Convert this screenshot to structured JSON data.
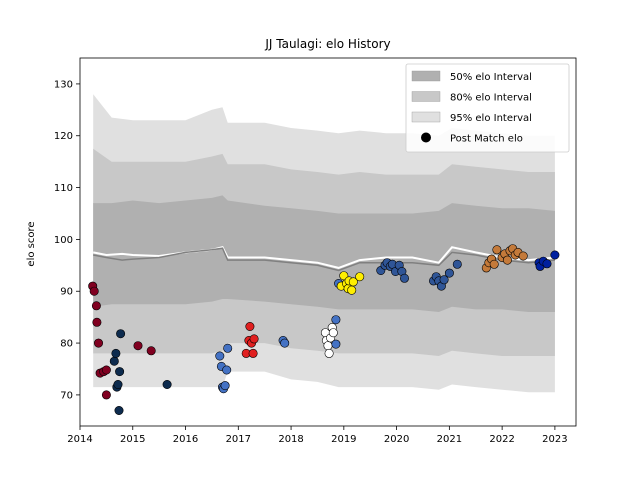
{
  "chart_data": {
    "type": "scatter",
    "title": "JJ Taulagi: elo History",
    "xlabel": "",
    "ylabel": "elo score",
    "xlim": [
      2014.0,
      2023.4
    ],
    "ylim": [
      64,
      135
    ],
    "x_ticks": [
      2014,
      2015,
      2016,
      2017,
      2018,
      2019,
      2020,
      2021,
      2022,
      2023
    ],
    "y_ticks": [
      70,
      80,
      90,
      100,
      110,
      120,
      130
    ],
    "grid": false,
    "legend_position": "top-right",
    "legend": [
      {
        "label": "50% elo Interval",
        "color": "#b0b0b0",
        "kind": "band"
      },
      {
        "label": "80% elo Interval",
        "color": "#c8c8c8",
        "kind": "band"
      },
      {
        "label": "95% elo Interval",
        "color": "#e0e0e0",
        "kind": "band"
      },
      {
        "label": "Post Match elo",
        "color": "#000000",
        "kind": "marker"
      }
    ],
    "intervals": {
      "x": [
        2014.25,
        2014.6,
        2015.0,
        2015.5,
        2016.0,
        2016.5,
        2016.7,
        2016.8,
        2017.5,
        2018.0,
        2018.5,
        2018.9,
        2019.3,
        2019.8,
        2020.3,
        2020.8,
        2021.05,
        2021.5,
        2022.0,
        2022.5,
        2023.0
      ],
      "p95": [
        {
          "lo": 71.5,
          "hi": 128.0
        },
        {
          "lo": 71.5,
          "hi": 123.5
        },
        {
          "lo": 71.5,
          "hi": 123.0
        },
        {
          "lo": 71.5,
          "hi": 123.0
        },
        {
          "lo": 71.5,
          "hi": 123.0
        },
        {
          "lo": 71.5,
          "hi": 125.0
        },
        {
          "lo": 71.5,
          "hi": 125.5
        },
        {
          "lo": 74.5,
          "hi": 122.5
        },
        {
          "lo": 74.5,
          "hi": 122.5
        },
        {
          "lo": 73.0,
          "hi": 121.5
        },
        {
          "lo": 72.5,
          "hi": 121.0
        },
        {
          "lo": 71.5,
          "hi": 120.5
        },
        {
          "lo": 71.5,
          "hi": 121.0
        },
        {
          "lo": 71.5,
          "hi": 120.5
        },
        {
          "lo": 71.5,
          "hi": 120.5
        },
        {
          "lo": 71.0,
          "hi": 120.0
        },
        {
          "lo": 72.0,
          "hi": 121.5
        },
        {
          "lo": 71.5,
          "hi": 121.0
        },
        {
          "lo": 71.0,
          "hi": 120.5
        },
        {
          "lo": 70.5,
          "hi": 120.0
        },
        {
          "lo": 70.5,
          "hi": 120.0
        }
      ],
      "p80": [
        {
          "lo": 78.0,
          "hi": 117.5
        },
        {
          "lo": 78.0,
          "hi": 115.0
        },
        {
          "lo": 78.0,
          "hi": 115.0
        },
        {
          "lo": 78.0,
          "hi": 115.0
        },
        {
          "lo": 78.0,
          "hi": 115.0
        },
        {
          "lo": 78.0,
          "hi": 116.0
        },
        {
          "lo": 78.5,
          "hi": 116.5
        },
        {
          "lo": 80.0,
          "hi": 114.5
        },
        {
          "lo": 80.0,
          "hi": 114.5
        },
        {
          "lo": 79.0,
          "hi": 113.5
        },
        {
          "lo": 78.5,
          "hi": 113.0
        },
        {
          "lo": 78.0,
          "hi": 112.5
        },
        {
          "lo": 78.0,
          "hi": 113.0
        },
        {
          "lo": 78.0,
          "hi": 112.5
        },
        {
          "lo": 78.0,
          "hi": 112.5
        },
        {
          "lo": 77.5,
          "hi": 112.5
        },
        {
          "lo": 78.5,
          "hi": 114.5
        },
        {
          "lo": 78.0,
          "hi": 114.0
        },
        {
          "lo": 77.5,
          "hi": 113.5
        },
        {
          "lo": 77.5,
          "hi": 113.0
        },
        {
          "lo": 77.5,
          "hi": 113.0
        }
      ],
      "p50": [
        {
          "lo": 87.0,
          "hi": 107.0
        },
        {
          "lo": 87.5,
          "hi": 107.0
        },
        {
          "lo": 87.5,
          "hi": 107.5
        },
        {
          "lo": 87.5,
          "hi": 107.0
        },
        {
          "lo": 87.5,
          "hi": 107.5
        },
        {
          "lo": 88.0,
          "hi": 108.0
        },
        {
          "lo": 88.5,
          "hi": 108.5
        },
        {
          "lo": 88.5,
          "hi": 107.5
        },
        {
          "lo": 88.0,
          "hi": 106.5
        },
        {
          "lo": 87.5,
          "hi": 106.0
        },
        {
          "lo": 87.0,
          "hi": 105.5
        },
        {
          "lo": 86.5,
          "hi": 105.0
        },
        {
          "lo": 86.5,
          "hi": 105.0
        },
        {
          "lo": 86.5,
          "hi": 105.0
        },
        {
          "lo": 86.5,
          "hi": 105.0
        },
        {
          "lo": 86.0,
          "hi": 105.5
        },
        {
          "lo": 87.0,
          "hi": 107.0
        },
        {
          "lo": 86.5,
          "hi": 106.5
        },
        {
          "lo": 86.5,
          "hi": 106.0
        },
        {
          "lo": 86.0,
          "hi": 106.0
        },
        {
          "lo": 86.0,
          "hi": 105.5
        }
      ]
    },
    "series": [
      {
        "x": [
          2014.25,
          2014.5,
          2014.8,
          2015.0,
          2015.5,
          2016.0,
          2016.5,
          2016.7,
          2016.8,
          2017.5,
          2018.0,
          2018.5,
          2018.9,
          2019.3,
          2019.8,
          2020.3,
          2020.8,
          2021.05,
          2021.5,
          2022.0,
          2022.5,
          2023.0
        ],
        "values": [
          97.5,
          97.0,
          97.2,
          97.0,
          96.8,
          97.5,
          98.0,
          98.5,
          96.5,
          96.5,
          96.0,
          95.5,
          94.5,
          96.0,
          96.5,
          96.5,
          95.5,
          98.5,
          97.5,
          96.5,
          96.0,
          96.5
        ],
        "color": "#ffffff",
        "style": "line"
      },
      {
        "x": [
          2014.25,
          2014.5,
          2014.8,
          2015.0,
          2015.5,
          2016.0,
          2016.5,
          2016.7,
          2016.8,
          2017.5,
          2018.0,
          2018.5,
          2018.9,
          2019.3,
          2019.8,
          2020.3,
          2020.8,
          2021.05,
          2021.5,
          2022.0,
          2022.5,
          2023.0
        ],
        "values": [
          97.0,
          96.5,
          96.0,
          96.2,
          96.5,
          97.5,
          98.0,
          98.3,
          96.0,
          96.0,
          95.5,
          95.0,
          94.0,
          95.5,
          95.5,
          95.5,
          95.0,
          97.5,
          97.0,
          96.0,
          95.5,
          96.0
        ],
        "color": "#808080",
        "style": "line"
      }
    ],
    "points": [
      {
        "x": 2014.24,
        "y": 91.0,
        "color": "#800020"
      },
      {
        "x": 2014.27,
        "y": 90.0,
        "color": "#800020"
      },
      {
        "x": 2014.31,
        "y": 87.2,
        "color": "#800020"
      },
      {
        "x": 2014.32,
        "y": 84.0,
        "color": "#800020"
      },
      {
        "x": 2014.35,
        "y": 80.0,
        "color": "#800020"
      },
      {
        "x": 2014.38,
        "y": 74.2,
        "color": "#800020"
      },
      {
        "x": 2014.45,
        "y": 74.5,
        "color": "#800020"
      },
      {
        "x": 2014.5,
        "y": 74.8,
        "color": "#800020"
      },
      {
        "x": 2014.5,
        "y": 70.0,
        "color": "#800020"
      },
      {
        "x": 2014.65,
        "y": 76.5,
        "color": "#0d2b4e"
      },
      {
        "x": 2014.68,
        "y": 78.0,
        "color": "#0d2b4e"
      },
      {
        "x": 2014.7,
        "y": 71.5,
        "color": "#0d2b4e"
      },
      {
        "x": 2014.72,
        "y": 72.0,
        "color": "#0d2b4e"
      },
      {
        "x": 2014.75,
        "y": 74.5,
        "color": "#0d2b4e"
      },
      {
        "x": 2014.77,
        "y": 81.8,
        "color": "#0d2b4e"
      },
      {
        "x": 2014.74,
        "y": 67.0,
        "color": "#0d2b4e"
      },
      {
        "x": 2015.1,
        "y": 79.5,
        "color": "#800020"
      },
      {
        "x": 2015.35,
        "y": 78.5,
        "color": "#800020"
      },
      {
        "x": 2015.65,
        "y": 72.0,
        "color": "#0d2b4e"
      },
      {
        "x": 2016.65,
        "y": 77.5,
        "color": "#4472c4"
      },
      {
        "x": 2016.68,
        "y": 75.5,
        "color": "#4472c4"
      },
      {
        "x": 2016.7,
        "y": 71.5,
        "color": "#4472c4"
      },
      {
        "x": 2016.72,
        "y": 71.2,
        "color": "#4472c4"
      },
      {
        "x": 2016.75,
        "y": 71.8,
        "color": "#4472c4"
      },
      {
        "x": 2016.78,
        "y": 74.8,
        "color": "#4472c4"
      },
      {
        "x": 2016.8,
        "y": 79.0,
        "color": "#4472c4"
      },
      {
        "x": 2017.15,
        "y": 78.0,
        "color": "#e02020"
      },
      {
        "x": 2017.2,
        "y": 80.5,
        "color": "#e02020"
      },
      {
        "x": 2017.22,
        "y": 83.2,
        "color": "#e02020"
      },
      {
        "x": 2017.25,
        "y": 80.0,
        "color": "#e02020"
      },
      {
        "x": 2017.28,
        "y": 78.0,
        "color": "#e02020"
      },
      {
        "x": 2017.3,
        "y": 80.8,
        "color": "#e02020"
      },
      {
        "x": 2017.85,
        "y": 80.5,
        "color": "#4472c4"
      },
      {
        "x": 2017.88,
        "y": 80.0,
        "color": "#4472c4"
      },
      {
        "x": 2018.65,
        "y": 82.0,
        "color": "#ffffff"
      },
      {
        "x": 2018.67,
        "y": 80.5,
        "color": "#ffffff"
      },
      {
        "x": 2018.7,
        "y": 79.5,
        "color": "#ffffff"
      },
      {
        "x": 2018.72,
        "y": 78.0,
        "color": "#ffffff"
      },
      {
        "x": 2018.75,
        "y": 81.0,
        "color": "#ffffff"
      },
      {
        "x": 2018.78,
        "y": 83.0,
        "color": "#ffffff"
      },
      {
        "x": 2018.8,
        "y": 82.0,
        "color": "#ffffff"
      },
      {
        "x": 2018.85,
        "y": 79.8,
        "color": "#4472c4"
      },
      {
        "x": 2018.85,
        "y": 84.5,
        "color": "#4472c4"
      },
      {
        "x": 2018.9,
        "y": 91.5,
        "color": "#4472c4"
      },
      {
        "x": 2018.95,
        "y": 91.0,
        "color": "#ffee00"
      },
      {
        "x": 2019.0,
        "y": 93.0,
        "color": "#ffee00"
      },
      {
        "x": 2019.05,
        "y": 91.5,
        "color": "#ffee00"
      },
      {
        "x": 2019.08,
        "y": 90.5,
        "color": "#ffee00"
      },
      {
        "x": 2019.1,
        "y": 92.0,
        "color": "#ffee00"
      },
      {
        "x": 2019.15,
        "y": 90.2,
        "color": "#ffee00"
      },
      {
        "x": 2019.18,
        "y": 91.8,
        "color": "#ffee00"
      },
      {
        "x": 2019.3,
        "y": 92.8,
        "color": "#ffee00"
      },
      {
        "x": 2019.7,
        "y": 94.0,
        "color": "#2f5597"
      },
      {
        "x": 2019.78,
        "y": 95.0,
        "color": "#2f5597"
      },
      {
        "x": 2019.82,
        "y": 95.5,
        "color": "#2f5597"
      },
      {
        "x": 2019.88,
        "y": 94.8,
        "color": "#2f5597"
      },
      {
        "x": 2019.92,
        "y": 95.2,
        "color": "#2f5597"
      },
      {
        "x": 2019.98,
        "y": 93.8,
        "color": "#2f5597"
      },
      {
        "x": 2020.05,
        "y": 95.0,
        "color": "#2f5597"
      },
      {
        "x": 2020.1,
        "y": 93.8,
        "color": "#2f5597"
      },
      {
        "x": 2020.15,
        "y": 92.5,
        "color": "#2f5597"
      },
      {
        "x": 2020.7,
        "y": 92.0,
        "color": "#2f5597"
      },
      {
        "x": 2020.75,
        "y": 92.8,
        "color": "#2f5597"
      },
      {
        "x": 2020.8,
        "y": 92.0,
        "color": "#2f5597"
      },
      {
        "x": 2020.85,
        "y": 91.0,
        "color": "#2f5597"
      },
      {
        "x": 2020.9,
        "y": 92.2,
        "color": "#2f5597"
      },
      {
        "x": 2021.0,
        "y": 93.5,
        "color": "#2f5597"
      },
      {
        "x": 2021.15,
        "y": 95.2,
        "color": "#2f5597"
      },
      {
        "x": 2021.7,
        "y": 94.5,
        "color": "#c47a3a"
      },
      {
        "x": 2021.75,
        "y": 95.5,
        "color": "#c47a3a"
      },
      {
        "x": 2021.8,
        "y": 96.2,
        "color": "#c47a3a"
      },
      {
        "x": 2021.85,
        "y": 95.2,
        "color": "#c47a3a"
      },
      {
        "x": 2021.9,
        "y": 98.0,
        "color": "#c47a3a"
      },
      {
        "x": 2022.0,
        "y": 96.5,
        "color": "#c47a3a"
      },
      {
        "x": 2022.05,
        "y": 97.2,
        "color": "#c47a3a"
      },
      {
        "x": 2022.1,
        "y": 96.0,
        "color": "#c47a3a"
      },
      {
        "x": 2022.15,
        "y": 97.8,
        "color": "#c47a3a"
      },
      {
        "x": 2022.2,
        "y": 98.2,
        "color": "#c47a3a"
      },
      {
        "x": 2022.25,
        "y": 97.0,
        "color": "#c47a3a"
      },
      {
        "x": 2022.3,
        "y": 97.5,
        "color": "#c47a3a"
      },
      {
        "x": 2022.4,
        "y": 96.8,
        "color": "#c47a3a"
      },
      {
        "x": 2022.7,
        "y": 95.5,
        "color": "#00209f"
      },
      {
        "x": 2022.72,
        "y": 94.8,
        "color": "#00209f"
      },
      {
        "x": 2022.78,
        "y": 95.8,
        "color": "#00209f"
      },
      {
        "x": 2022.85,
        "y": 95.3,
        "color": "#00209f"
      },
      {
        "x": 2023.0,
        "y": 97.0,
        "color": "#00209f"
      }
    ]
  }
}
